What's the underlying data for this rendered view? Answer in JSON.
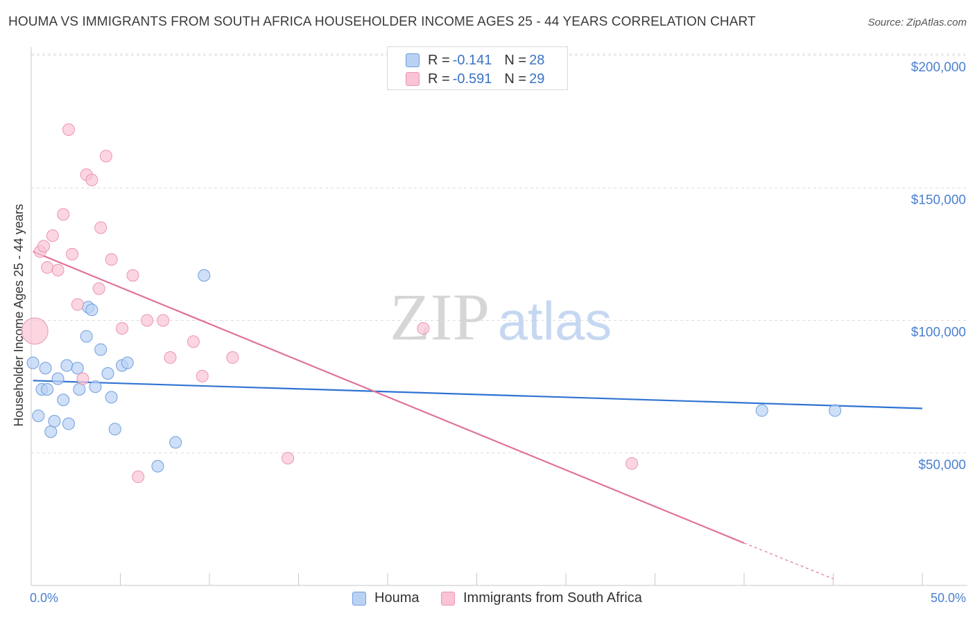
{
  "title": "HOUMA VS IMMIGRANTS FROM SOUTH AFRICA HOUSEHOLDER INCOME AGES 25 - 44 YEARS CORRELATION CHART",
  "source": "Source: ZipAtlas.com",
  "watermark": {
    "zip": "ZIP",
    "atlas": "atlas"
  },
  "legend": {
    "r_label": "R =",
    "n_label": "N =",
    "items": [
      {
        "r": "-0.141",
        "n": "28"
      },
      {
        "r": "-0.591",
        "n": "29"
      }
    ]
  },
  "colors": {
    "houma_fill": "#b9d1f3",
    "houma_stroke": "#6f9ee0",
    "houma_line": "#2f72d3",
    "sa_fill": "#f9c4d4",
    "sa_stroke": "#ec93b1",
    "sa_line": "#e0729a",
    "axis_label": "#4a7fd0",
    "grid": "#dcdcdc"
  },
  "chart_data": {
    "type": "scatter",
    "title": "HOUMA VS IMMIGRANTS FROM SOUTH AFRICA HOUSEHOLDER INCOME AGES 25 - 44 YEARS CORRELATION CHART",
    "xlabel": "",
    "ylabel": "Householder Income Ages 25 - 44 years",
    "xlim": [
      0,
      50
    ],
    "ylim": [
      0,
      205000
    ],
    "x_tick_labels": [
      "0.0%",
      "50.0%"
    ],
    "y_ticks": [
      50000,
      100000,
      150000,
      200000
    ],
    "y_tick_labels": [
      "$50,000",
      "$100,000",
      "$150,000",
      "$200,000"
    ],
    "grid": true,
    "legend_position": "bottom",
    "series": [
      {
        "name": "Houma",
        "points": [
          [
            0.1,
            84000
          ],
          [
            0.4,
            64000
          ],
          [
            0.6,
            74000
          ],
          [
            0.8,
            82000
          ],
          [
            0.9,
            74000
          ],
          [
            1.1,
            58000
          ],
          [
            1.3,
            62000
          ],
          [
            1.5,
            78000
          ],
          [
            1.8,
            70000
          ],
          [
            2.0,
            83000
          ],
          [
            2.1,
            61000
          ],
          [
            2.6,
            82000
          ],
          [
            2.7,
            74000
          ],
          [
            3.1,
            94000
          ],
          [
            3.2,
            105000
          ],
          [
            3.4,
            104000
          ],
          [
            3.6,
            75000
          ],
          [
            3.9,
            89000
          ],
          [
            4.3,
            80000
          ],
          [
            4.5,
            71000
          ],
          [
            4.7,
            59000
          ],
          [
            5.1,
            83000
          ],
          [
            5.4,
            84000
          ],
          [
            7.1,
            45000
          ],
          [
            8.1,
            54000
          ],
          [
            9.7,
            117000
          ],
          [
            41.0,
            66000
          ],
          [
            45.1,
            66000
          ]
        ],
        "trend": {
          "x1": 0.1,
          "y1": 77300,
          "x2": 50,
          "y2": 66800
        }
      },
      {
        "name": "Immigrants from South Africa",
        "points": [
          [
            0.2,
            96000
          ],
          [
            0.5,
            126000
          ],
          [
            0.7,
            128000
          ],
          [
            0.9,
            120000
          ],
          [
            1.2,
            132000
          ],
          [
            1.5,
            119000
          ],
          [
            1.8,
            140000
          ],
          [
            2.1,
            172000
          ],
          [
            2.3,
            125000
          ],
          [
            2.6,
            106000
          ],
          [
            2.9,
            78000
          ],
          [
            3.1,
            155000
          ],
          [
            3.4,
            153000
          ],
          [
            3.8,
            112000
          ],
          [
            3.9,
            135000
          ],
          [
            4.2,
            162000
          ],
          [
            4.5,
            123000
          ],
          [
            5.1,
            97000
          ],
          [
            5.7,
            117000
          ],
          [
            6.0,
            41000
          ],
          [
            6.5,
            100000
          ],
          [
            7.4,
            100000
          ],
          [
            7.8,
            86000
          ],
          [
            9.1,
            92000
          ],
          [
            9.6,
            79000
          ],
          [
            11.3,
            86000
          ],
          [
            14.4,
            48000
          ],
          [
            22.0,
            97000
          ],
          [
            33.7,
            46000
          ]
        ],
        "trend": {
          "x1": 0.1,
          "y1": 126000,
          "x2": 40,
          "y2": 16000
        },
        "trend_dashed": {
          "x1": 40,
          "y1": 16000,
          "x2": 45,
          "y2": 2500
        }
      }
    ]
  },
  "bottom_legend": [
    "Houma",
    "Immigrants from South Africa"
  ]
}
